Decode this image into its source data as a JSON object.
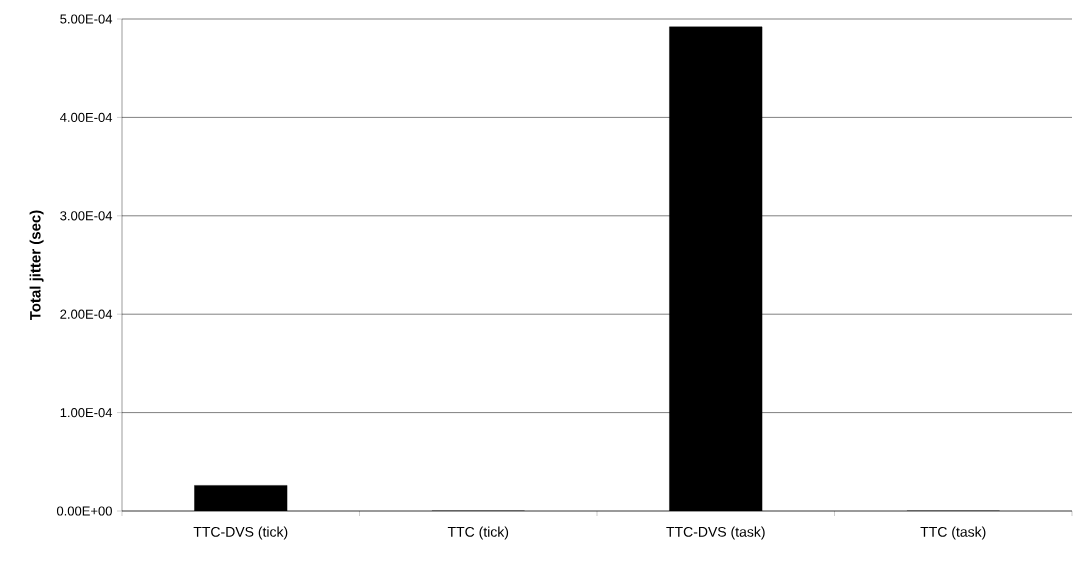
{
  "chart_data": {
    "type": "bar",
    "ylabel": "Total jitter (sec)",
    "categories": [
      "TTC-DVS (tick)",
      "TTC (tick)",
      "TTC-DVS (task)",
      "TTC (task)"
    ],
    "values": [
      2.6e-05,
      0,
      0.000492,
      0
    ],
    "color": "#000000",
    "ylim": [
      0,
      0.0005
    ],
    "yticks": [
      {
        "value": 0,
        "label": "0.00E+00"
      },
      {
        "value": 0.0001,
        "label": "1.00E-04"
      },
      {
        "value": 0.0002,
        "label": "2.00E-04"
      },
      {
        "value": 0.0003,
        "label": "3.00E-04"
      },
      {
        "value": 0.0004,
        "label": "4.00E-04"
      },
      {
        "value": 0.0005,
        "label": "5.00E-04"
      }
    ],
    "grid": "y"
  }
}
